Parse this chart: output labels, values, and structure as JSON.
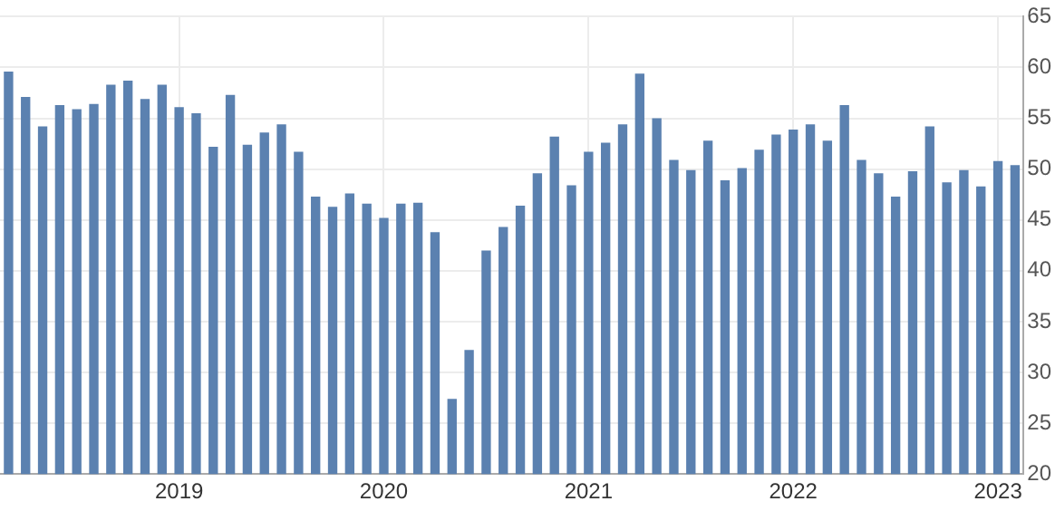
{
  "chart_data": {
    "type": "bar",
    "categories": [
      null,
      null,
      null,
      null,
      null,
      null,
      null,
      null,
      null,
      null,
      "2019",
      null,
      null,
      null,
      null,
      null,
      null,
      null,
      null,
      null,
      null,
      null,
      "2020",
      null,
      null,
      null,
      null,
      null,
      null,
      null,
      null,
      null,
      null,
      null,
      "2021",
      null,
      null,
      null,
      null,
      null,
      null,
      null,
      null,
      null,
      null,
      null,
      "2022",
      null,
      null,
      null,
      null,
      null,
      null,
      null,
      null,
      null,
      null,
      null,
      "2023",
      null
    ],
    "values": [
      59.6,
      57.1,
      54.2,
      56.3,
      55.9,
      56.4,
      58.3,
      58.7,
      56.9,
      58.3,
      56.1,
      55.5,
      52.2,
      57.3,
      52.4,
      53.6,
      54.4,
      51.7,
      47.3,
      46.3,
      47.6,
      46.6,
      45.2,
      46.6,
      46.7,
      43.8,
      27.4,
      32.2,
      42.0,
      44.3,
      46.4,
      49.6,
      53.2,
      48.4,
      51.7,
      52.6,
      54.4,
      59.4,
      55.0,
      50.9,
      49.9,
      52.8,
      48.9,
      50.1,
      51.9,
      53.4,
      53.9,
      54.4,
      52.8,
      56.3,
      50.9,
      49.6,
      47.3,
      49.8,
      54.2,
      48.7,
      49.9,
      48.3,
      50.8,
      50.4
    ],
    "color": "#5b81b0",
    "ylim": [
      20,
      65
    ],
    "yticks": [
      20,
      25,
      30,
      35,
      40,
      45,
      50,
      55,
      60,
      65
    ],
    "grid": true,
    "legend": false
  }
}
